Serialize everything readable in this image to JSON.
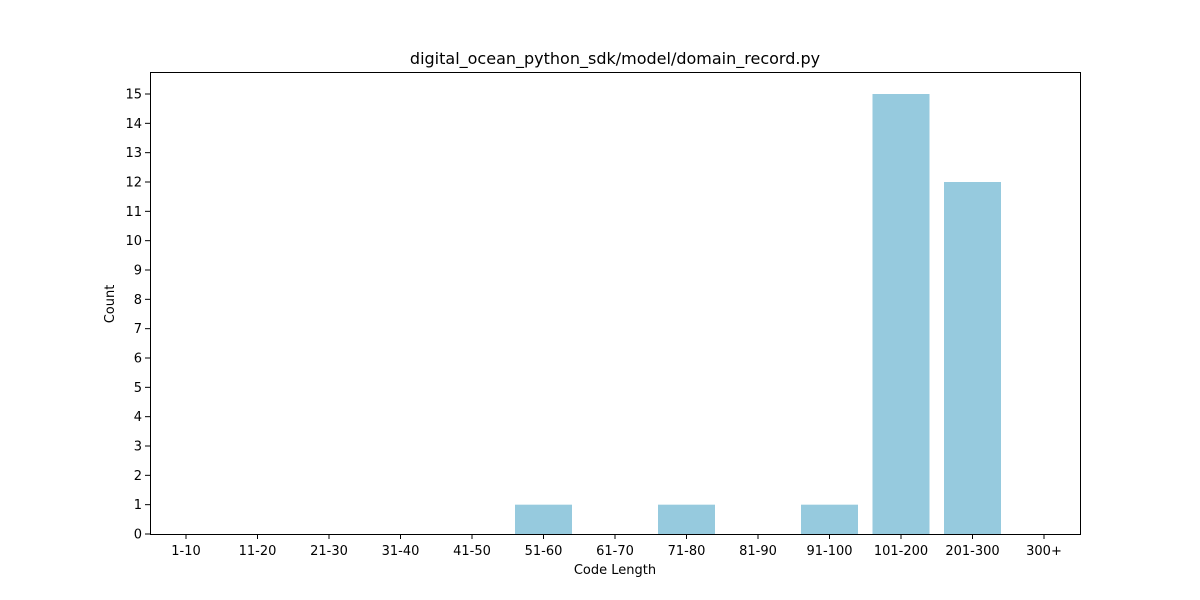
{
  "chart_data": {
    "type": "bar",
    "title": "digital_ocean_python_sdk/model/domain_record.py",
    "xlabel": "Code Length",
    "ylabel": "Count",
    "categories": [
      "1-10",
      "11-20",
      "21-30",
      "31-40",
      "41-50",
      "51-60",
      "61-70",
      "71-80",
      "81-90",
      "91-100",
      "101-200",
      "201-300",
      "300+"
    ],
    "values": [
      0,
      0,
      0,
      0,
      0,
      1,
      0,
      1,
      0,
      1,
      15,
      12,
      0
    ],
    "ylim": [
      0,
      15.75
    ],
    "yticks": [
      0,
      1,
      2,
      3,
      4,
      5,
      6,
      7,
      8,
      9,
      10,
      11,
      12,
      13,
      14,
      15
    ],
    "grid": false,
    "colors": {
      "bar": "#96cade",
      "axis": "#000000",
      "background": "#ffffff"
    }
  }
}
